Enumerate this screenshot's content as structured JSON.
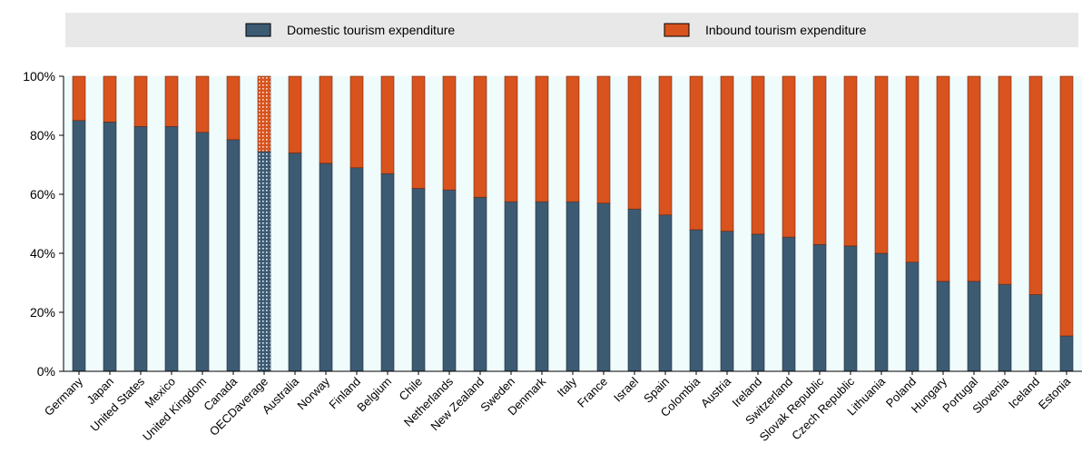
{
  "chart_data": {
    "type": "bar",
    "stacked": true,
    "stack_normalized": true,
    "categories": [
      "Germany",
      "Japan",
      "United States",
      "Mexico",
      "United Kingdom",
      "Canada",
      "OECDaverage",
      "Australia",
      "Norway",
      "Finland",
      "Belgium",
      "Chile",
      "Netherlands",
      "New Zealand",
      "Sweden",
      "Denmark",
      "Italy",
      "France",
      "Israel",
      "Spain",
      "Colombia",
      "Austria",
      "Ireland",
      "Switzerland",
      "Slovak Republic",
      "Czech Republic",
      "Lithuania",
      "Poland",
      "Hungary",
      "Portugal",
      "Slovenia",
      "Iceland",
      "Estonia"
    ],
    "highlight_category": "OECDaverage",
    "series": [
      {
        "name": "Domestic tourism expenditure",
        "color": "#3d5a73",
        "values": [
          85,
          84.5,
          83,
          83,
          81,
          78.5,
          74.5,
          74,
          70.5,
          69,
          67,
          62,
          61.5,
          59,
          57.5,
          57.5,
          57.5,
          57,
          55,
          53,
          48,
          47.5,
          46.5,
          45.5,
          43,
          42.5,
          40,
          37,
          30.5,
          30.5,
          29.5,
          26,
          12
        ]
      },
      {
        "name": "Inbound tourism expenditure",
        "color": "#d9531e",
        "values": [
          15,
          15.5,
          17,
          17,
          19,
          21.5,
          25.5,
          26,
          29.5,
          31,
          33,
          38,
          38.5,
          41,
          42.5,
          42.5,
          42.5,
          43,
          45,
          47,
          52,
          52.5,
          53.5,
          54.5,
          57,
          57.5,
          60,
          63,
          69.5,
          69.5,
          70.5,
          74,
          88
        ]
      }
    ],
    "y_tick_labels": [
      "0%",
      "20%",
      "40%",
      "60%",
      "80%",
      "100%"
    ],
    "y_ticks": [
      0,
      20,
      40,
      60,
      80,
      100
    ],
    "ylim": [
      0,
      100
    ],
    "xlabel": "",
    "ylabel": "",
    "legend_position": "top",
    "grid": false,
    "background_color": "#f0fbfb",
    "legend_band_color": "#e8e8e8"
  }
}
